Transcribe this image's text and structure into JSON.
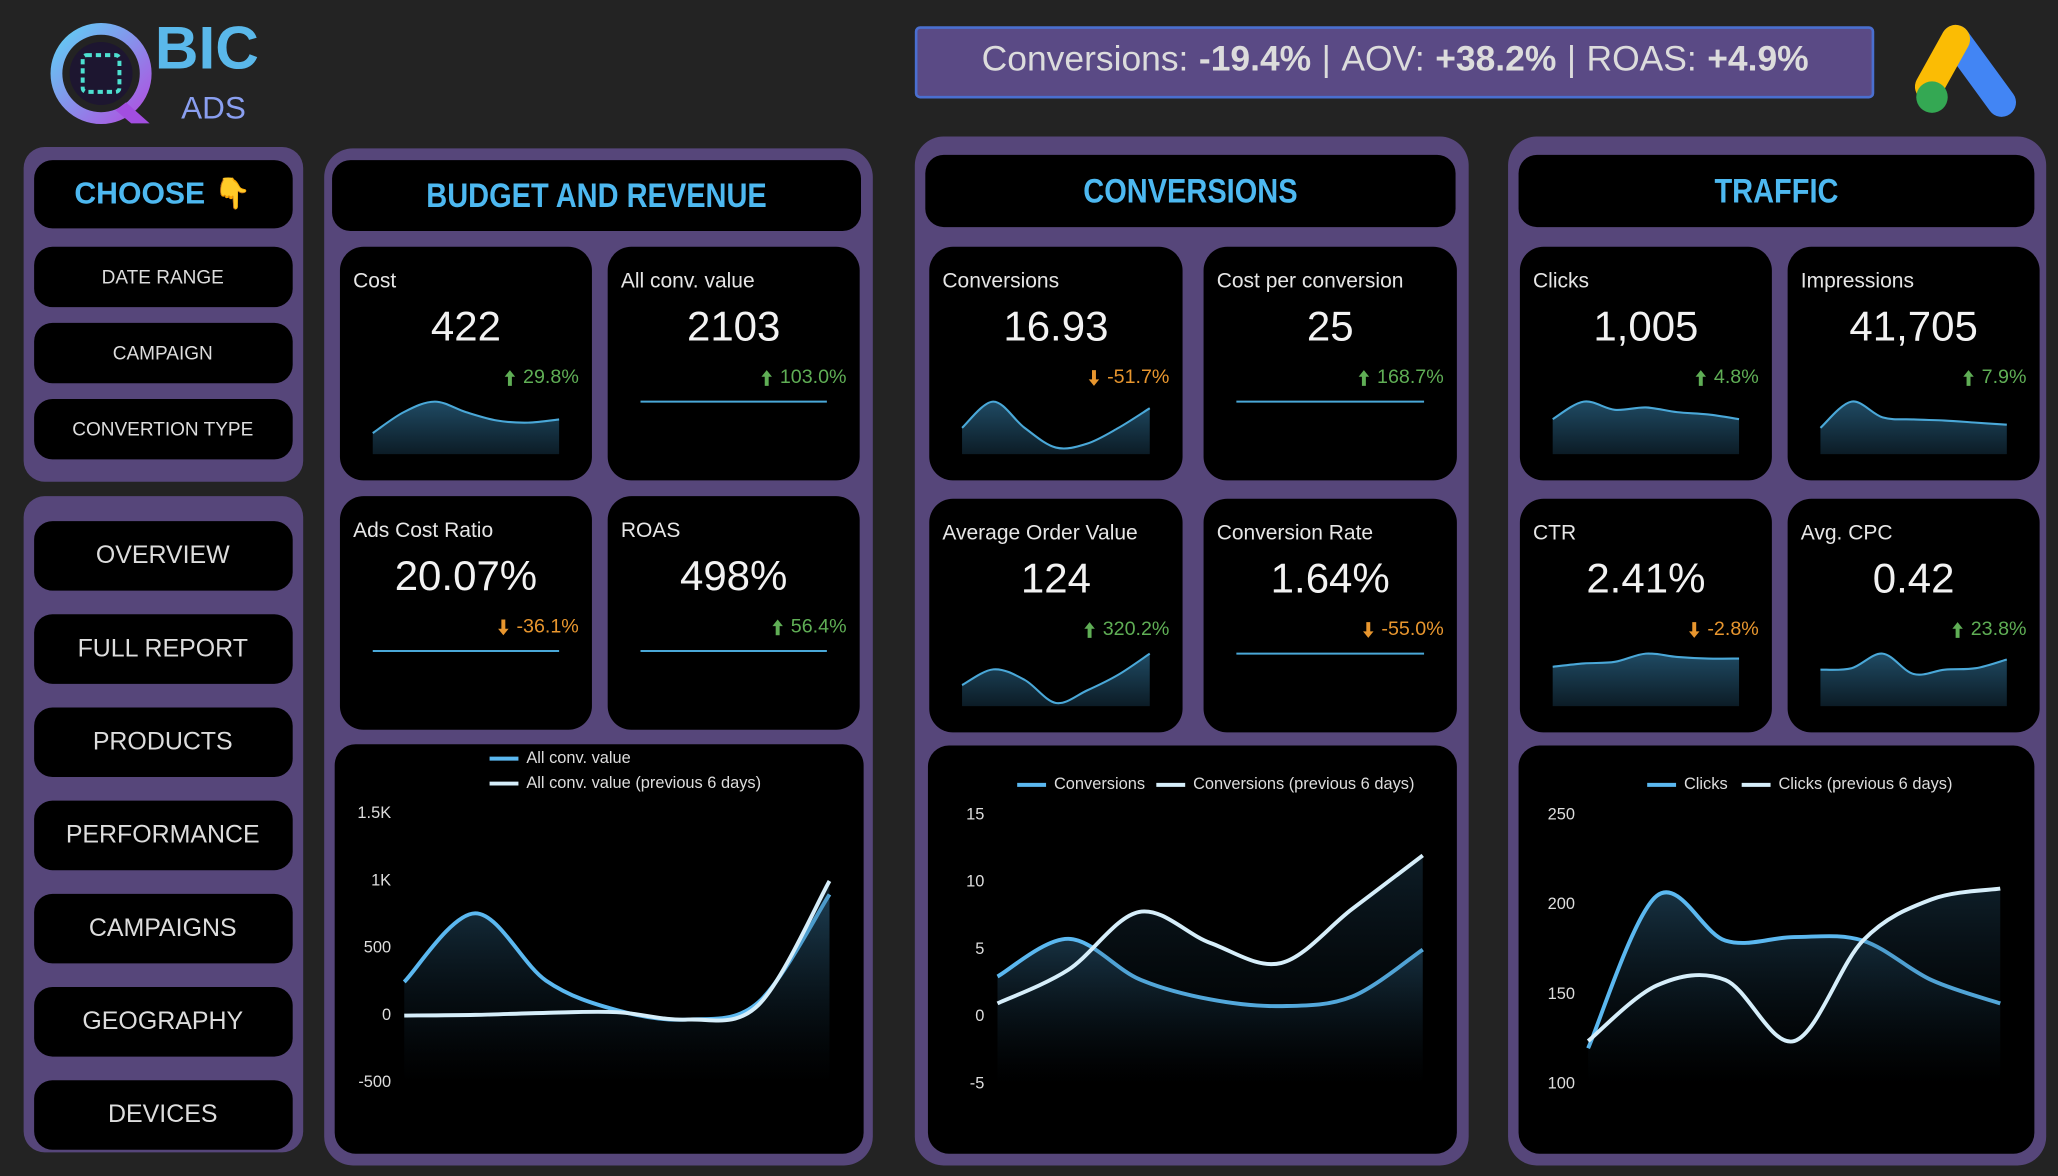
{
  "logo": {
    "title": "BIC",
    "subtitle": "ADS"
  },
  "banner": {
    "separator": "|",
    "items": [
      {
        "label": "Conversions:",
        "value": "-19.4%"
      },
      {
        "label": "AOV:",
        "value": "+38.2%"
      },
      {
        "label": "ROAS:",
        "value": "+4.9%"
      }
    ]
  },
  "filters": {
    "title": "CHOOSE 👇",
    "items": [
      "DATE RANGE",
      "CAMPAIGN",
      "CONVERTION TYPE"
    ]
  },
  "nav": [
    "OVERVIEW",
    "FULL REPORT",
    "PRODUCTS",
    "PERFORMANCE",
    "CAMPAIGNS",
    "GEOGRAPHY",
    "DEVICES"
  ],
  "sections": [
    {
      "title": "BUDGET AND REVENUE",
      "cards": [
        {
          "label": "Cost",
          "value": "422",
          "change": "29.8%",
          "direction": "up",
          "trend": [
            2,
            4,
            5,
            4,
            3.2,
            3,
            3.3
          ]
        },
        {
          "label": "All conv. value",
          "value": "2103",
          "change": "103.0%",
          "direction": "up",
          "trend": [
            1,
            1,
            1,
            1,
            1,
            1,
            1
          ]
        },
        {
          "label": "Ads Cost Ratio",
          "value": "20.07%",
          "change": "-36.1%",
          "direction": "down",
          "trend": [
            1,
            1,
            1,
            1,
            1,
            1,
            1
          ]
        },
        {
          "label": "ROAS",
          "value": "498%",
          "change": "56.4%",
          "direction": "up",
          "trend": [
            1,
            1,
            1,
            1,
            1,
            1,
            1
          ]
        }
      ]
    },
    {
      "title": "CONVERSIONS",
      "cards": [
        {
          "label": "Conversions",
          "value": "16.93",
          "change": "-51.7%",
          "direction": "down",
          "trend": [
            2,
            4,
            2,
            0.5,
            0.8,
            2,
            3.5
          ]
        },
        {
          "label": "Cost per conversion",
          "value": "25",
          "change": "168.7%",
          "direction": "up",
          "trend": [
            1,
            1,
            1,
            1,
            1,
            1,
            1
          ]
        },
        {
          "label": "Average Order Value",
          "value": "124",
          "change": "320.2%",
          "direction": "up",
          "trend": [
            2,
            3.5,
            2.5,
            0.3,
            1.5,
            3,
            5
          ]
        },
        {
          "label": "Conversion Rate",
          "value": "1.64%",
          "change": "-55.0%",
          "direction": "down",
          "trend": [
            1,
            1,
            1,
            1,
            1,
            1,
            1
          ]
        }
      ]
    },
    {
      "title": "TRAFFIC",
      "cards": [
        {
          "label": "Clicks",
          "value": "1,005",
          "change": "4.8%",
          "direction": "up",
          "trend": [
            3,
            4.5,
            3.8,
            4,
            3.6,
            3.4,
            3
          ]
        },
        {
          "label": "Impressions",
          "value": "41,705",
          "change": "7.9%",
          "direction": "up",
          "trend": [
            2.5,
            5,
            3.5,
            3.3,
            3.2,
            3,
            2.8
          ]
        },
        {
          "label": "CTR",
          "value": "2.41%",
          "change": "-2.8%",
          "direction": "down",
          "trend": [
            2.4,
            2.6,
            2.7,
            3.2,
            3,
            2.9,
            2.9
          ]
        },
        {
          "label": "Avg. CPC",
          "value": "0.42",
          "change": "23.8%",
          "direction": "up",
          "trend": [
            2.5,
            2.6,
            3.6,
            2.2,
            2.5,
            2.6,
            3.2
          ]
        }
      ]
    }
  ],
  "chart_data": [
    {
      "type": "line",
      "legend": "top-stacked",
      "categories": [
        null,
        null,
        null,
        null,
        null,
        null,
        null
      ],
      "series": [
        {
          "name": "All conv. value",
          "color": "#5bb8f0",
          "values": [
            250,
            760,
            260,
            40,
            -30,
            100,
            900
          ]
        },
        {
          "name": "All conv. value (previous 6 days)",
          "color": "#d6eefa",
          "values": [
            0,
            5,
            20,
            25,
            -30,
            80,
            1000
          ]
        }
      ],
      "ylim": [
        -500,
        1500
      ],
      "yticks": [
        -500,
        0,
        500,
        {
          "value": 1000,
          "label": "1K"
        },
        {
          "value": 1500,
          "label": "1.5K"
        }
      ]
    },
    {
      "type": "line",
      "legend": "top",
      "categories": [
        null,
        null,
        null,
        null,
        null,
        null,
        null
      ],
      "series": [
        {
          "name": "Conversions",
          "color": "#5bb8f0",
          "values": [
            3,
            5.8,
            2.8,
            1.3,
            0.8,
            1.5,
            5
          ]
        },
        {
          "name": "Conversions (previous 6 days)",
          "color": "#d6eefa",
          "values": [
            1,
            3.5,
            7.8,
            5.5,
            4,
            8,
            12
          ]
        }
      ],
      "ylim": [
        -5,
        15
      ],
      "yticks": [
        -5,
        0,
        5,
        10,
        15
      ]
    },
    {
      "type": "line",
      "legend": "top",
      "categories": [
        null,
        null,
        null,
        null,
        null,
        null,
        null
      ],
      "series": [
        {
          "name": "Clicks",
          "color": "#5bb8f0",
          "values": [
            120,
            205,
            180,
            182,
            180,
            158,
            145
          ]
        },
        {
          "name": "Clicks (previous 6 days)",
          "color": "#d6eefa",
          "values": [
            124,
            155,
            158,
            124,
            180,
            203,
            209
          ]
        }
      ],
      "ylim": [
        100,
        250
      ],
      "yticks": [
        100,
        150,
        200,
        250
      ]
    }
  ]
}
